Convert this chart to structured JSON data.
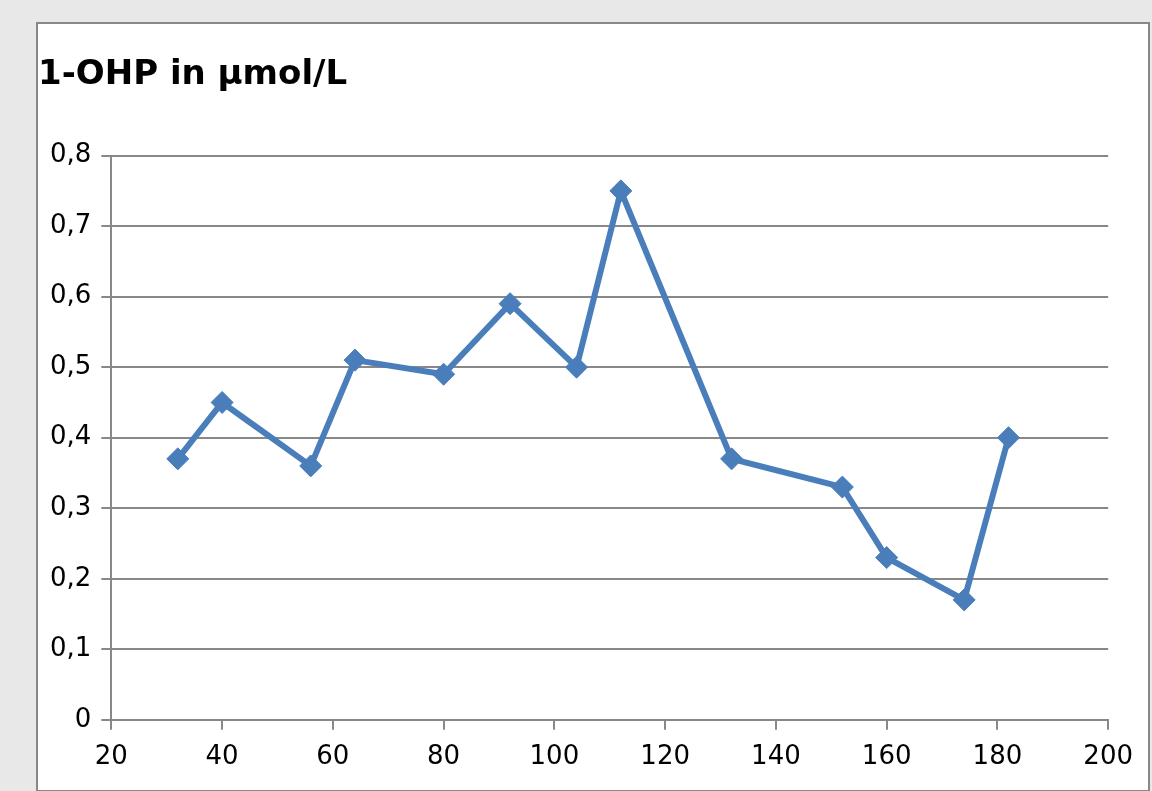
{
  "chart_data": {
    "type": "line",
    "title": "1-OHP in µmol/L",
    "x": [
      32,
      40,
      56,
      64,
      80,
      92,
      104,
      112,
      132,
      152,
      160,
      174,
      182
    ],
    "series": [
      {
        "color": "#4a7ebb",
        "values": [
          0.37,
          0.45,
          0.36,
          0.51,
          0.49,
          0.59,
          0.5,
          0.75,
          0.37,
          0.33,
          0.23,
          0.17,
          0.4
        ]
      }
    ],
    "xlim": [
      20,
      200
    ],
    "xticks": [
      20,
      40,
      60,
      80,
      100,
      120,
      140,
      160,
      180,
      200
    ],
    "ylim": [
      0,
      0.8
    ],
    "yticks": [
      {
        "value": 0,
        "label": "0"
      },
      {
        "value": 0.1,
        "label": "0,1"
      },
      {
        "value": 0.2,
        "label": "0,2"
      },
      {
        "value": 0.3,
        "label": "0,3"
      },
      {
        "value": 0.4,
        "label": "0,4"
      },
      {
        "value": 0.5,
        "label": "0,5"
      },
      {
        "value": 0.6,
        "label": "0,6"
      },
      {
        "value": 0.7,
        "label": "0,7"
      },
      {
        "value": 0.8,
        "label": "0,8"
      }
    ],
    "grid": "y",
    "marker": "diamond",
    "line_style": "solid"
  }
}
